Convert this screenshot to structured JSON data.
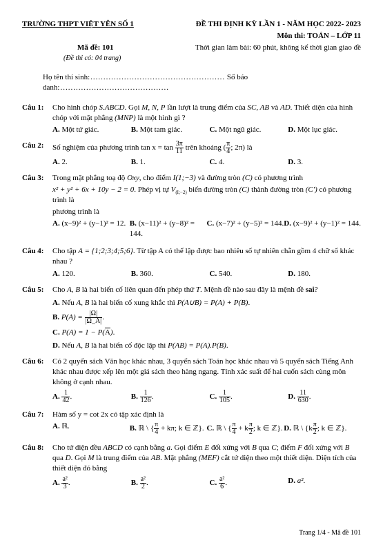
{
  "header": {
    "school": "TRƯỜNG THPT VIỆT YÊN SỐ 1",
    "title": "ĐỀ THI ĐỊNH KỲ LẦN 1 - NĂM HỌC 2022- 2023",
    "subject": "Môn thi: TOÁN – LỚP 11",
    "code": "Mã đề: 101",
    "time": "Thời gian làm bài: 60 phút, không kể thời gian giao đề",
    "pages": "(Đề thi có: 04 trang)",
    "name_label": "Họ tên thí sinh",
    "id_label": "Số báo danh"
  },
  "q1": {
    "num": "Câu 1:",
    "text1": "Cho hình chóp ",
    "s": "S.ABCD",
    "text2": ". Gọi ",
    "mnp": "M, N, P",
    "text3": " lần lượt là trung điểm của ",
    "sc": "SC, AB",
    "text4": " và ",
    "ad": "AD",
    "text5": ". Thiết diện của hình chóp với mặt phẳng ",
    "mnp2": "(MNP)",
    "text6": " là một hình gì ?",
    "a": "Một tứ giác.",
    "b": "Một tam giác.",
    "c": "Một ngũ giác.",
    "d": "Một lục giác."
  },
  "q2": {
    "num": "Câu 2:",
    "text1": "Số nghiệm của phương trình ",
    "eq1": "tan x = tan",
    "frac_n": "3π",
    "frac_d": "11",
    "text2": " trên khoảng ",
    "int_n": "π",
    "int_d": "4",
    "int2": "; 2π",
    "text3": " là",
    "a": "2.",
    "b": "1.",
    "c": "4.",
    "d": "3."
  },
  "q3": {
    "num": "Câu 3:",
    "text1": "Trong mặt phẳng toạ độ ",
    "oxy": "Oxy",
    "text2": ", cho điểm ",
    "i": "I(1;−3)",
    "text3": " và đường tròn ",
    "c1": "(C)",
    "text4": " có phương trình",
    "eq": "x² + y² + 6x + 10y − 2 = 0",
    "text5": ". Phép vị tự ",
    "v": "V",
    "vsub": "(I;−2)",
    "text6": " biến đường tròn ",
    "c2": "(C)",
    "text7": " thành đường tròn ",
    "c3": "(C')",
    "text8": " có phương trình là",
    "a": "(x−9)² + (y−1)² = 12.",
    "b": "(x−11)² + (y−8)² = 144.",
    "c": "(x−7)² + (y−5)² = 144.",
    "d": "(x−9)² + (y−1)² = 144."
  },
  "q4": {
    "num": "Câu 4:",
    "text1": "Cho tập ",
    "set": "A = {1;2;3;4;5;6}",
    "text2": ". Từ tập A có thể lập được bao nhiêu số tự nhiên chẵn gồm 4 chữ số khác nhau ?",
    "a": "120.",
    "b": "360.",
    "c": "540.",
    "d": "180."
  },
  "q5": {
    "num": "Câu 5:",
    "text1": "Cho ",
    "ab": "A, B",
    "text2": " là hai biến cố liên quan đến phép thử ",
    "t": "T",
    "text3": ". Mệnh đề nào sau đây là mệnh đề ",
    "sai": "sai",
    "text4": "?",
    "a1": "Nếu ",
    "a2": " là hai biến cố xung khắc thì ",
    "a3": "P(A∪B) = P(A) + P(B)",
    "b1": "P(A) = ",
    "bn": "|Ω|",
    "bd": "|Ω_A|",
    "c1": "P(A) = 1 − P(",
    "c2": "A",
    "c3": ")",
    "d1": "Nếu ",
    "d2": " là hai biến cố độc lập thì ",
    "d3": "P(AB) = P(A).P(B)"
  },
  "q6": {
    "num": "Câu 6:",
    "text": "Có 2 quyển sách Văn học khác nhau, 3 quyển sách Toán học khác nhau và 5 quyển sách Tiếng Anh khác nhau được xếp lên một giá sách theo hàng ngang. Tính xác suất để hai cuốn sách cùng môn không ở cạnh nhau.",
    "an": "1",
    "ad": "42",
    "bn": "1",
    "bd": "126",
    "cn": "1",
    "cd": "105",
    "dn": "11",
    "dd": "630"
  },
  "q7": {
    "num": "Câu 7:",
    "text": "Hàm số  y = cot 2x  có tập xác định là",
    "a": "ℝ.",
    "b1": "ℝ \\ {",
    "bn": "π",
    "bd": "4",
    "b2": " + kπ; k ∈ ℤ}.",
    "c1": "ℝ \\ {",
    "cn": "π",
    "cd": "4",
    "c2": " + k",
    "cn2": "π",
    "cd2": "2",
    "c3": "; k ∈ ℤ}.",
    "d1": "ℝ \\ {k",
    "dn": "π",
    "dd": "2",
    "d2": "; k ∈ ℤ}."
  },
  "q8": {
    "num": "Câu 8:",
    "text1": "Cho tứ diện đều ",
    "abcd": "ABCD",
    "text2": " có cạnh bằng ",
    "a": "a",
    "text3": ". Gọi điểm ",
    "e": "E",
    "text4": " đối xứng với ",
    "b": "B",
    "text5": " qua ",
    "cc": "C",
    "text6": "; điểm ",
    "f": "F",
    "text7": " đối xứng với ",
    "b2": "B",
    "text8": " qua ",
    "dd": "D",
    "text9": ". Gọi ",
    "m": "M",
    "text10": " là trung điểm của ",
    "ab": "AB",
    "text11": ". Mặt phẳng ",
    "mef": "(MEF)",
    "text12": " cắt tứ diện theo một thiết diện. Diện tích của thiết diện đó bằng",
    "an": "a²",
    "ad2": "3",
    "bn": "a²",
    "bd2": "2",
    "cn": "a²",
    "cd2": "6",
    "d": "a²"
  },
  "footer": "Trang 1/4 - Mã đề 101"
}
